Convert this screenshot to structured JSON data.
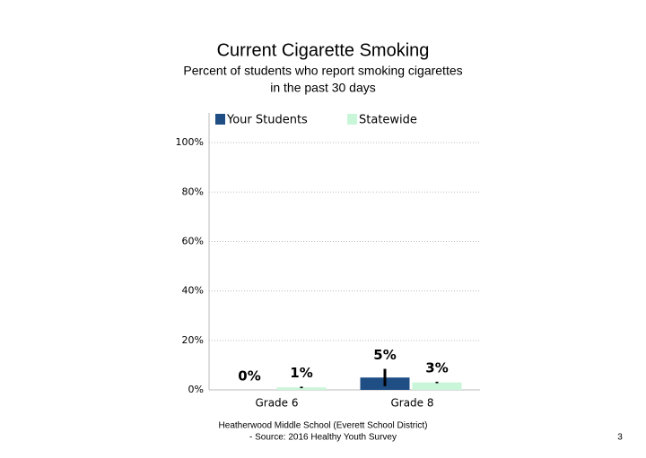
{
  "chart_data": {
    "type": "bar",
    "title": "Current Cigarette Smoking",
    "subtitle": [
      "Percent of students who report smoking cigarettes",
      "in the past 30 days"
    ],
    "categories": [
      "Grade 6",
      "Grade 8"
    ],
    "series": [
      {
        "name": "Your Students",
        "color": "#1f4e85",
        "values": [
          0,
          5
        ],
        "value_labels": [
          "0%",
          "5%"
        ],
        "errors": [
          null,
          3.5
        ]
      },
      {
        "name": "Statewide",
        "color": "#c9f5d8",
        "values": [
          1,
          3
        ],
        "value_labels": [
          "1%",
          "3%"
        ],
        "errors": [
          0.3,
          0.3
        ]
      }
    ],
    "ylim": [
      0,
      112
    ],
    "yticks": [
      {
        "value": 0,
        "label": "0%"
      },
      {
        "value": 20,
        "label": "20%"
      },
      {
        "value": 40,
        "label": "40%"
      },
      {
        "value": 60,
        "label": "60%"
      },
      {
        "value": 80,
        "label": "80%"
      },
      {
        "value": 100,
        "label": "100%"
      }
    ],
    "grid": true,
    "legend": "top"
  },
  "footer": [
    "Heatherwood Middle School (Everett School District)",
    "- Source: 2016 Healthy Youth Survey"
  ],
  "page_number": "3"
}
